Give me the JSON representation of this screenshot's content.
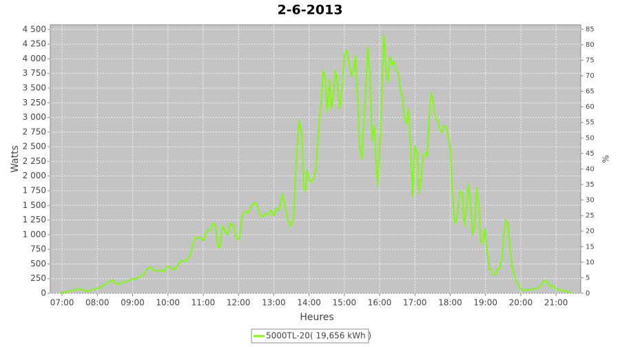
{
  "chart_data": {
    "type": "line",
    "title": "2-6-2013",
    "x_label": "Heures",
    "y_label": "Watts",
    "y2_label": "%",
    "x": [
      418,
      426,
      434,
      442,
      449,
      456,
      463,
      470,
      477,
      484,
      491,
      499,
      506,
      510,
      516,
      523,
      530,
      537,
      545,
      552,
      559,
      566,
      571,
      576,
      582,
      588,
      593,
      599,
      605,
      611,
      617,
      623,
      631,
      638,
      646,
      656,
      661,
      666,
      672,
      677,
      681,
      685,
      688,
      693,
      698,
      702,
      707,
      712,
      716,
      721,
      727,
      732,
      736,
      742,
      747,
      752,
      756,
      761,
      766,
      770,
      775,
      780,
      784,
      789,
      795,
      800,
      804,
      809,
      814,
      818,
      823,
      828,
      831,
      834,
      837,
      842,
      848,
      852,
      857,
      861,
      864,
      868,
      871,
      875,
      878,
      882,
      885,
      889,
      892,
      897,
      900,
      904,
      909,
      912,
      916,
      919,
      923,
      926,
      930,
      933,
      937,
      940,
      944,
      947,
      951,
      954,
      957,
      960,
      964,
      967,
      971,
      974,
      978,
      981,
      985,
      988,
      992,
      995,
      999,
      1002,
      1006,
      1009,
      1013,
      1016,
      1020,
      1024,
      1027,
      1031,
      1034,
      1038,
      1041,
      1045,
      1048,
      1052,
      1055,
      1059,
      1062,
      1066,
      1069,
      1073,
      1076,
      1080,
      1083,
      1087,
      1090,
      1094,
      1097,
      1101,
      1104,
      1108,
      1111,
      1115,
      1118,
      1122,
      1125,
      1129,
      1132,
      1136,
      1139,
      1143,
      1147,
      1150,
      1154,
      1157,
      1161,
      1164,
      1168,
      1171,
      1175,
      1178,
      1182,
      1185,
      1189,
      1192,
      1196,
      1199,
      1205,
      1211,
      1217,
      1223,
      1229,
      1234,
      1240,
      1244,
      1249,
      1254,
      1259,
      1265,
      1271,
      1278,
      1285
    ],
    "series": [
      {
        "name": "5000TL-20( 19,656 kWh )",
        "color": "#7cff00",
        "values": [
          20,
          25,
          45,
          60,
          80,
          60,
          40,
          60,
          80,
          100,
          140,
          190,
          230,
          180,
          160,
          190,
          200,
          240,
          250,
          280,
          330,
          430,
          450,
          400,
          380,
          400,
          370,
          460,
          440,
          400,
          480,
          560,
          560,
          650,
          950,
          950,
          900,
          1060,
          1080,
          1200,
          1150,
          800,
          780,
          1150,
          1050,
          1000,
          1200,
          1150,
          950,
          920,
          1350,
          1400,
          1370,
          1480,
          1550,
          1500,
          1350,
          1300,
          1370,
          1330,
          1420,
          1330,
          1450,
          1420,
          1700,
          1450,
          1250,
          1150,
          1300,
          2200,
          2950,
          2700,
          1800,
          1750,
          2100,
          1900,
          1950,
          2150,
          2900,
          3300,
          3800,
          3650,
          3100,
          3650,
          3150,
          3450,
          3800,
          3550,
          3150,
          3550,
          4050,
          4150,
          3900,
          3700,
          3800,
          4050,
          3300,
          2500,
          2300,
          2900,
          3600,
          4200,
          3700,
          2600,
          2850,
          2200,
          1850,
          2400,
          3500,
          4400,
          3800,
          3600,
          4050,
          3900,
          3950,
          3800,
          3750,
          3500,
          3350,
          3000,
          2900,
          3150,
          2500,
          1650,
          2500,
          2400,
          1700,
          2000,
          2350,
          2400,
          2350,
          3100,
          3430,
          3200,
          3000,
          2950,
          2800,
          2750,
          2850,
          2850,
          2700,
          2500,
          1900,
          1250,
          1200,
          1500,
          1750,
          1700,
          1150,
          1450,
          1870,
          1500,
          1000,
          1200,
          1800,
          1500,
          850,
          900,
          1100,
          700,
          420,
          400,
          320,
          320,
          430,
          420,
          600,
          1000,
          1250,
          1200,
          750,
          480,
          300,
          200,
          160,
          80,
          50,
          70,
          70,
          80,
          90,
          130,
          220,
          210,
          120,
          130,
          80,
          60,
          50,
          40,
          15
        ]
      }
    ],
    "xlim": [
      400,
      1302
    ],
    "xticks": [
      {
        "value": 420,
        "label": "07:00"
      },
      {
        "value": 480,
        "label": "08:00"
      },
      {
        "value": 540,
        "label": "09:00"
      },
      {
        "value": 600,
        "label": "10:00"
      },
      {
        "value": 660,
        "label": "11:00"
      },
      {
        "value": 720,
        "label": "12:00"
      },
      {
        "value": 780,
        "label": "13:00"
      },
      {
        "value": 840,
        "label": "14:00"
      },
      {
        "value": 900,
        "label": "15:00"
      },
      {
        "value": 960,
        "label": "16:00"
      },
      {
        "value": 1020,
        "label": "17:00"
      },
      {
        "value": 1080,
        "label": "18:00"
      },
      {
        "value": 1140,
        "label": "19:00"
      },
      {
        "value": 1200,
        "label": "20:00"
      },
      {
        "value": 1260,
        "label": "21:00"
      }
    ],
    "ylim": [
      0,
      4580
    ],
    "yticks": [
      0,
      250,
      500,
      750,
      {
        "value": 1000,
        "label": "1 000"
      },
      {
        "value": 1250,
        "label": "1 250"
      },
      {
        "value": 1500,
        "label": "1 500"
      },
      {
        "value": 1750,
        "label": "1 750"
      },
      {
        "value": 2000,
        "label": "2 000"
      },
      {
        "value": 2250,
        "label": "2 250"
      },
      {
        "value": 2500,
        "label": "2 500"
      },
      {
        "value": 2750,
        "label": "2 750"
      },
      {
        "value": 3000,
        "label": "3 000"
      },
      {
        "value": 3250,
        "label": "3 250"
      },
      {
        "value": 3500,
        "label": "3 500"
      },
      {
        "value": 3750,
        "label": "3 750"
      },
      {
        "value": 4000,
        "label": "4 000"
      },
      {
        "value": 4250,
        "label": "4 250"
      },
      {
        "value": 4500,
        "label": "4 500"
      }
    ],
    "y2lim": [
      0,
      86.4
    ],
    "y2ticks": [
      0,
      5,
      10,
      15,
      20,
      25,
      30,
      35,
      40,
      45,
      50,
      55,
      60,
      65,
      70,
      75,
      80,
      85
    ],
    "grid": true,
    "legend": "bottom"
  }
}
